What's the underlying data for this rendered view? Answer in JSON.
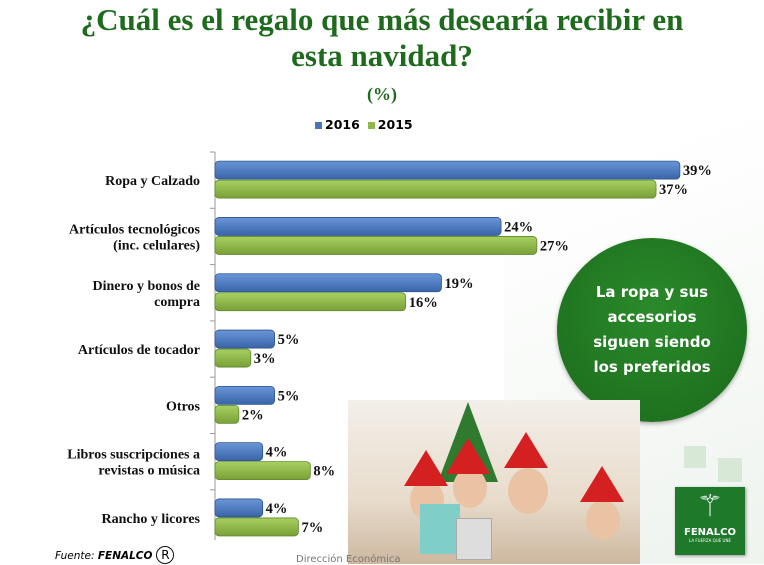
{
  "chart_data": {
    "type": "bar",
    "orientation": "horizontal",
    "title": "¿Cuál es el regalo que más desearía recibir en esta navidad?",
    "subtitle": "(%)",
    "categories": [
      "Ropa y Calzado",
      "Artículos tecnológicos (inc. celulares)",
      "Dinero y bonos de compra",
      "Artículos de tocador",
      "Otros",
      "Libros suscripciones a revistas o música",
      "Rancho y licores"
    ],
    "category_lines": [
      [
        "Ropa y Calzado"
      ],
      [
        "Artículos tecnológicos",
        "(inc. celulares)"
      ],
      [
        "Dinero y bonos de",
        "compra"
      ],
      [
        "Artículos de tocador"
      ],
      [
        "Otros"
      ],
      [
        "Libros suscripciones a",
        "revistas o música"
      ],
      [
        "Rancho y licores"
      ]
    ],
    "series": [
      {
        "name": "2016",
        "color": "#4a76b8",
        "values": [
          39,
          24,
          19,
          5,
          5,
          4,
          4
        ]
      },
      {
        "name": "2015",
        "color": "#8fb84a",
        "values": [
          37,
          27,
          16,
          3,
          2,
          8,
          7
        ]
      }
    ],
    "value_suffix": "%",
    "xlim": [
      0,
      40
    ],
    "legend": "top",
    "grid": false
  },
  "title_line1": "¿Cuál es el regalo que más desearía recibir en",
  "title_line2": "esta navidad?",
  "subtitle": "(%)",
  "callout": "La ropa y sus accesorios siguen siendo los preferidos",
  "footer": {
    "source_label": "Fuente: ",
    "source_name": "FENALCO",
    "reg_mark": "R",
    "department": "Dirección Económica"
  },
  "logo": {
    "name": "FENALCO",
    "tagline": "LA FUERZA QUE UNE"
  }
}
